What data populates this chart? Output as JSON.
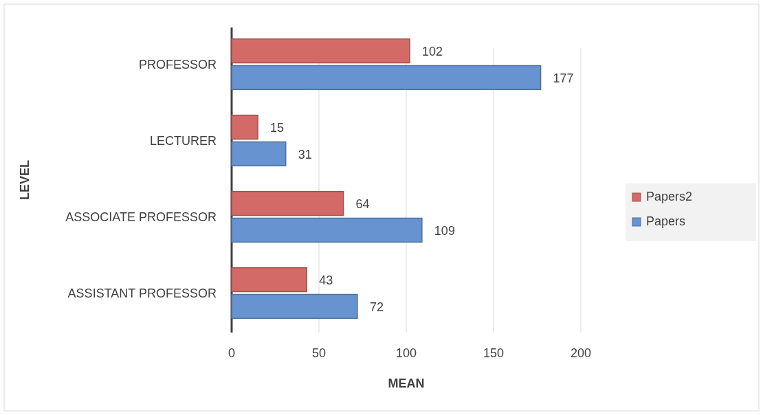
{
  "chart_data": {
    "type": "bar",
    "orientation": "horizontal",
    "xlabel": "MEAN",
    "ylabel": "LEVEL",
    "categories": [
      "PROFESSOR",
      "LECTURER",
      "ASSOCIATE PROFESSOR",
      "ASSISTANT PROFESSOR"
    ],
    "series": [
      {
        "name": "Papers2",
        "color": "#d46a68",
        "values": [
          102,
          15,
          64,
          43
        ]
      },
      {
        "name": "Papers",
        "color": "#6793d0",
        "values": [
          177,
          31,
          109,
          72
        ]
      }
    ],
    "xlim": [
      0,
      200
    ],
    "xticks": [
      0,
      50,
      100,
      150,
      200
    ],
    "grid": "x",
    "legend": "right",
    "data_labels": true
  }
}
